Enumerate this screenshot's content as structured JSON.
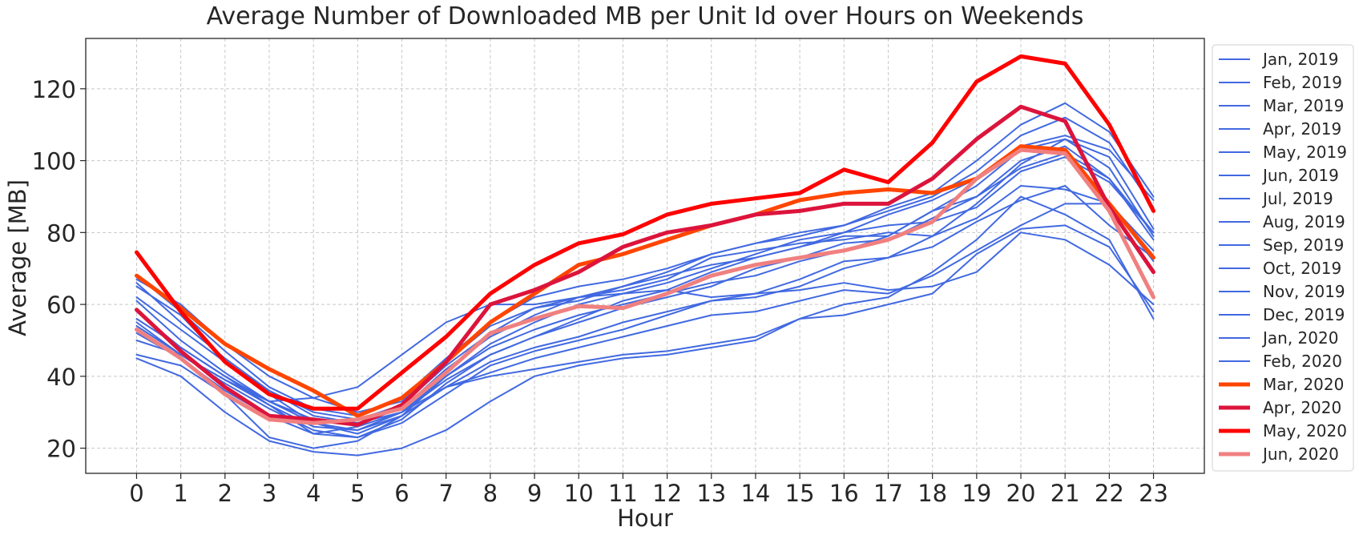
{
  "chart_data": {
    "type": "line",
    "title": "Average Number of Downloaded MB per Unit Id over Hours on Weekends",
    "xlabel": "Hour",
    "ylabel": "Average [MB]",
    "x": [
      0,
      1,
      2,
      3,
      4,
      5,
      6,
      7,
      8,
      9,
      10,
      11,
      12,
      13,
      14,
      15,
      16,
      17,
      18,
      19,
      20,
      21,
      22,
      23
    ],
    "xlim": [
      -1.15,
      24.15
    ],
    "ylim": [
      13,
      134
    ],
    "yticks": [
      20,
      40,
      60,
      80,
      100,
      120
    ],
    "grid": true,
    "legend_position": "right, outside plot",
    "colors": {
      "baseline": "#4169e1",
      "mar_2020": "#ff4500",
      "apr_2020": "#dc143c",
      "may_2020": "#ff0000",
      "jun_2020": "#f08080"
    },
    "series": [
      {
        "name": "Jan, 2019",
        "color": "#4169e1",
        "highlight": false,
        "values": [
          65,
          57,
          44,
          35,
          27,
          24,
          29,
          40,
          48,
          53,
          57,
          60,
          63,
          66,
          68,
          72,
          75,
          79,
          86,
          90,
          100,
          104,
          95,
          80
        ]
      },
      {
        "name": "Feb, 2019",
        "color": "#4169e1",
        "highlight": false,
        "values": [
          66,
          55,
          45,
          36,
          30,
          28,
          32,
          43,
          52,
          59,
          61,
          65,
          68,
          71,
          73,
          76,
          80,
          82,
          83,
          87,
          97,
          101,
          94,
          80
        ]
      },
      {
        "name": "Mar, 2019",
        "color": "#4169e1",
        "highlight": false,
        "values": [
          67,
          60,
          49,
          40,
          34,
          30,
          33,
          44,
          54,
          59,
          62,
          64,
          67,
          73,
          75,
          77,
          78,
          80,
          79,
          88,
          99,
          106,
          101,
          81
        ]
      },
      {
        "name": "Apr, 2019",
        "color": "#4169e1",
        "highlight": false,
        "values": [
          68,
          58,
          47,
          37,
          31,
          29,
          34,
          45,
          55,
          62,
          65,
          67,
          70,
          74,
          77,
          79,
          82,
          86,
          90,
          97,
          107,
          112,
          105,
          87
        ]
      },
      {
        "name": "May, 2019",
        "color": "#4169e1",
        "highlight": false,
        "values": [
          62,
          53,
          44,
          36,
          29,
          27,
          31,
          42,
          51,
          57,
          62,
          65,
          69,
          74,
          77,
          80,
          82,
          87,
          91,
          100,
          110,
          116,
          108,
          90
        ]
      },
      {
        "name": "Jun, 2019",
        "color": "#4169e1",
        "highlight": false,
        "values": [
          61,
          50,
          41,
          33,
          27,
          25,
          30,
          40,
          49,
          55,
          60,
          63,
          66,
          70,
          74,
          78,
          80,
          85,
          89,
          95,
          104,
          107,
          103,
          89
        ]
      },
      {
        "name": "Jul, 2019",
        "color": "#4169e1",
        "highlight": false,
        "values": [
          58,
          48,
          40,
          32,
          24,
          23,
          28,
          38,
          46,
          51,
          56,
          61,
          64,
          69,
          73,
          76,
          79,
          79,
          86,
          93,
          103,
          106,
          98,
          79
        ]
      },
      {
        "name": "Aug, 2019",
        "color": "#4169e1",
        "highlight": false,
        "values": [
          56,
          48,
          40,
          33,
          28,
          27,
          30,
          39,
          46,
          51,
          55,
          59,
          62,
          65,
          70,
          73,
          77,
          78,
          84,
          90,
          98,
          102,
          95,
          78
        ]
      },
      {
        "name": "Sep, 2019",
        "color": "#4169e1",
        "highlight": false,
        "values": [
          55,
          46,
          39,
          32,
          26,
          25,
          29,
          37,
          44,
          48,
          51,
          55,
          58,
          61,
          63,
          67,
          72,
          73,
          79,
          84,
          93,
          92,
          88,
          75
        ]
      },
      {
        "name": "Oct, 2019",
        "color": "#4169e1",
        "highlight": false,
        "values": [
          54,
          46,
          38,
          31,
          25,
          23,
          27,
          35,
          43,
          47,
          50,
          53,
          57,
          61,
          62,
          65,
          70,
          73,
          76,
          83,
          89,
          93,
          82,
          73
        ]
      },
      {
        "name": "Nov, 2019",
        "color": "#4169e1",
        "highlight": false,
        "values": [
          52,
          45,
          36,
          29,
          24,
          26,
          30,
          37,
          41,
          45,
          48,
          51,
          54,
          57,
          58,
          61,
          64,
          63,
          68,
          75,
          82,
          88,
          88,
          72
        ]
      },
      {
        "name": "Dec, 2019",
        "color": "#4169e1",
        "highlight": false,
        "values": [
          50,
          46,
          39,
          33,
          34,
          37,
          46,
          55,
          60,
          60,
          62,
          63,
          64,
          62,
          63,
          64,
          66,
          64,
          65,
          69,
          80,
          78,
          71,
          60
        ]
      },
      {
        "name": "Jan, 2020",
        "color": "#4169e1",
        "highlight": false,
        "values": [
          46,
          43,
          35,
          23,
          20,
          22,
          29,
          37,
          40,
          42,
          44,
          46,
          47,
          49,
          51,
          56,
          57,
          60,
          63,
          74,
          81,
          82,
          76,
          58
        ]
      },
      {
        "name": "Feb, 2020",
        "color": "#4169e1",
        "highlight": false,
        "values": [
          45,
          40,
          30,
          22,
          19,
          18,
          20,
          25,
          33,
          40,
          43,
          45,
          46,
          48,
          50,
          56,
          60,
          62,
          69,
          78,
          90,
          85,
          78,
          56
        ]
      },
      {
        "name": "Mar, 2020",
        "color": "#ff4500",
        "highlight": true,
        "values": [
          68,
          59,
          49,
          42,
          36,
          29,
          34,
          44,
          55,
          63,
          71,
          74,
          78,
          82,
          85,
          89,
          91,
          92,
          91,
          95,
          104,
          103,
          88,
          73
        ]
      },
      {
        "name": "Apr, 2020",
        "color": "#dc143c",
        "highlight": true,
        "values": [
          58.5,
          47,
          37,
          29,
          28,
          26.5,
          32,
          44,
          60,
          64,
          69,
          76,
          80,
          82,
          85,
          86,
          88,
          88,
          95,
          106,
          115,
          111,
          87,
          69
        ]
      },
      {
        "name": "May, 2020",
        "color": "#ff0000",
        "highlight": true,
        "values": [
          74.5,
          58,
          44,
          35,
          31,
          31,
          41,
          51,
          63,
          71,
          77,
          79.5,
          85,
          88,
          89.5,
          91,
          97.5,
          94,
          105,
          122,
          129,
          127,
          110,
          86
        ]
      },
      {
        "name": "Jun, 2020",
        "color": "#f08080",
        "highlight": true,
        "values": [
          53,
          45,
          35,
          28,
          27,
          28,
          31,
          41,
          52,
          56,
          59.5,
          59,
          63,
          68,
          71,
          73,
          75,
          78,
          83,
          95,
          103,
          102,
          86,
          62
        ]
      }
    ]
  }
}
